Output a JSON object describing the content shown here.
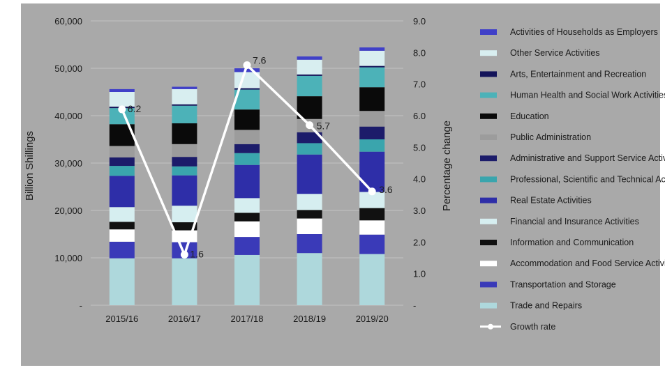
{
  "chart_data": {
    "type": "bar",
    "stacked": true,
    "categories": [
      "2015/16",
      "2016/17",
      "2017/18",
      "2018/19",
      "2019/20"
    ],
    "ylabel": "Billion Shillings",
    "y2label": "Percentage change",
    "ylim": [
      0,
      60000
    ],
    "y2lim": [
      0,
      9.0
    ],
    "y_ticks": [
      "-",
      "10,000",
      "20,000",
      "30,000",
      "40,000",
      "50,000",
      "60,000"
    ],
    "y2_ticks": [
      "-",
      "1.0",
      "2.0",
      "3.0",
      "4.0",
      "5.0",
      "6.0",
      "7.0",
      "8.0",
      "9.0"
    ],
    "grid": true,
    "legend_position": "right",
    "series": [
      {
        "name": "Trade and Repairs",
        "color": "#aed8dc",
        "values": [
          9900,
          9900,
          10600,
          11000,
          10800
        ]
      },
      {
        "name": "Transportation and Storage",
        "color": "#3a3ab8",
        "values": [
          3500,
          3400,
          3800,
          4000,
          4100
        ]
      },
      {
        "name": "Accommodation and Food Service Activities",
        "color": "#ffffff",
        "values": [
          2600,
          2500,
          3300,
          3300,
          3000
        ]
      },
      {
        "name": "Information and Communication",
        "color": "#111111",
        "values": [
          1600,
          1700,
          1800,
          1800,
          2600
        ]
      },
      {
        "name": "Financial and Insurance Activities",
        "color": "#d6eef0",
        "values": [
          3100,
          3500,
          3100,
          3400,
          3400
        ]
      },
      {
        "name": "Real Estate Activities",
        "color": "#2e2ea8",
        "values": [
          6600,
          6400,
          7000,
          8300,
          8500
        ]
      },
      {
        "name": "Professional, Scientific and Technical Activities",
        "color": "#3aa5ad",
        "values": [
          2100,
          1900,
          2500,
          2400,
          2600
        ]
      },
      {
        "name": "Administrative and Support Service Activities",
        "color": "#1c1c6a",
        "values": [
          1800,
          2000,
          1900,
          2300,
          2700
        ]
      },
      {
        "name": "Public Administration",
        "color": "#9c9c9c",
        "values": [
          2400,
          2700,
          3000,
          2800,
          3300
        ]
      },
      {
        "name": "Education",
        "color": "#0a0a0a",
        "values": [
          4600,
          4400,
          4300,
          4800,
          5000
        ]
      },
      {
        "name": "Human Health and Social Work Activities",
        "color": "#4cb2b8",
        "values": [
          3400,
          3700,
          4200,
          4300,
          4200
        ]
      },
      {
        "name": "Arts, Entertainment and Recreation",
        "color": "#14145a",
        "values": [
          300,
          300,
          300,
          300,
          300
        ]
      },
      {
        "name": "Other Service Activities",
        "color": "#d8eef0",
        "values": [
          3100,
          3200,
          3400,
          3100,
          3200
        ]
      },
      {
        "name": "Activities of Households as Employers",
        "color": "#4040c8",
        "values": [
          600,
          500,
          800,
          700,
          700
        ]
      }
    ],
    "line_series": {
      "name": "Growth rate",
      "axis": "right",
      "color": "#ffffff",
      "values": [
        6.2,
        1.6,
        7.6,
        5.7,
        3.6
      ],
      "labels": [
        "6.2",
        "1.6",
        "7.6",
        "5.7",
        "3.6"
      ]
    }
  }
}
